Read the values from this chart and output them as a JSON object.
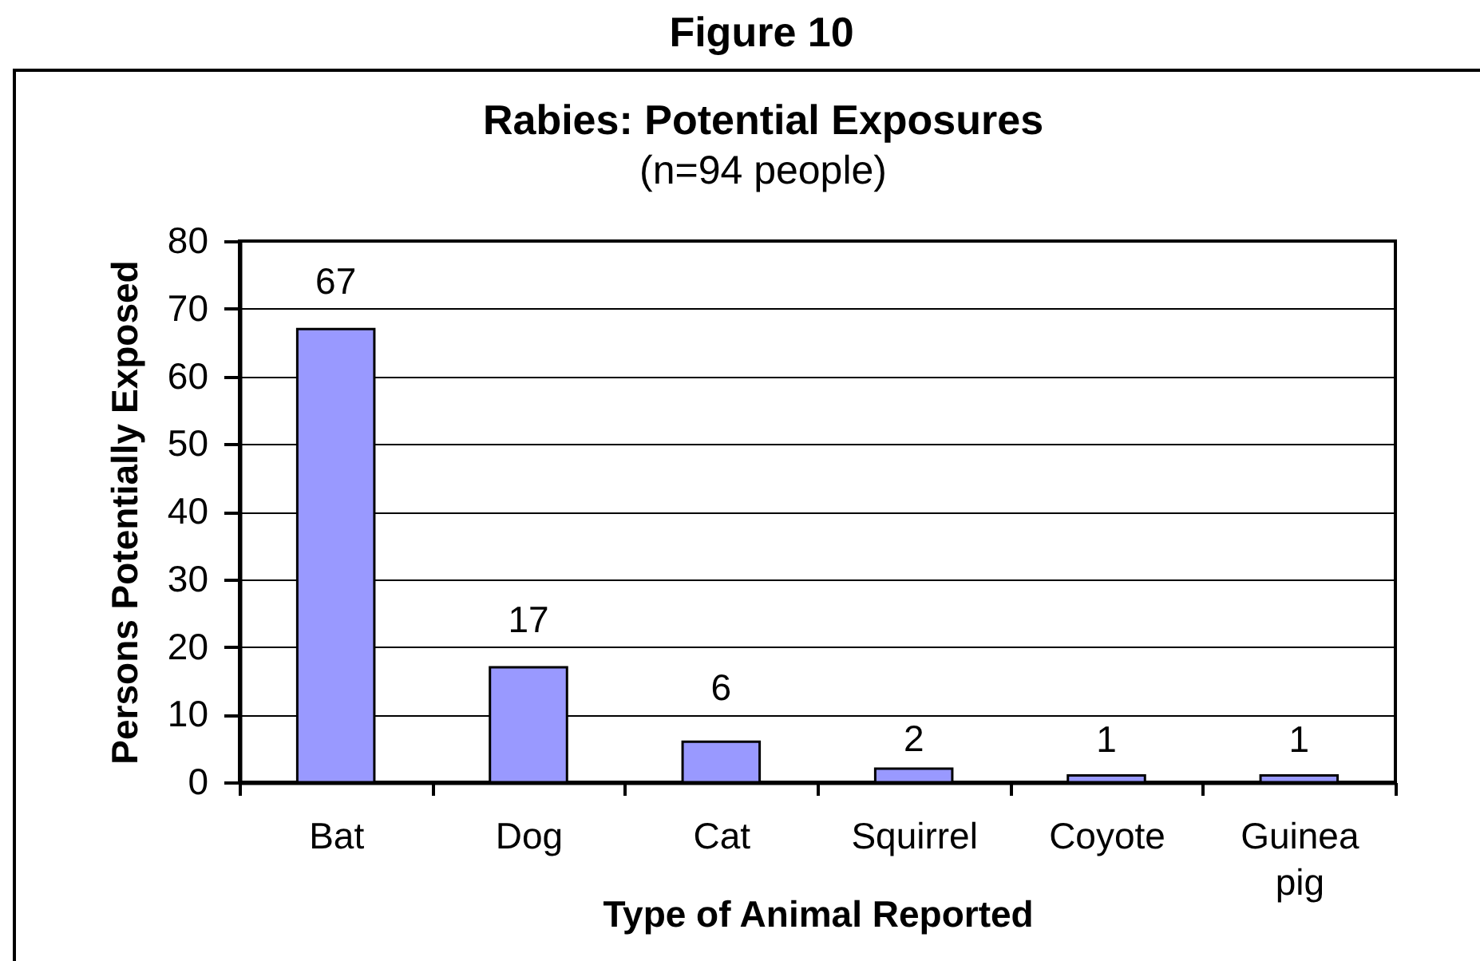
{
  "chart_data": {
    "type": "bar",
    "title": "Rabies: Potential Exposures",
    "subtitle": "(n=94 people)",
    "xlabel": "Type of Animal Reported",
    "ylabel": "Persons Potentially Exposed",
    "categories": [
      "Bat",
      "Dog",
      "Cat",
      "Squirrel",
      "Coyote",
      "Guinea pig"
    ],
    "values": [
      67,
      17,
      6,
      2,
      1,
      1
    ],
    "color": "#9999ff",
    "ylim": [
      0,
      80
    ],
    "yticks": [
      0,
      10,
      20,
      30,
      40,
      50,
      60,
      70,
      80
    ],
    "grid": "y",
    "data_labels": true,
    "annotations": [
      "Figure 10"
    ]
  }
}
